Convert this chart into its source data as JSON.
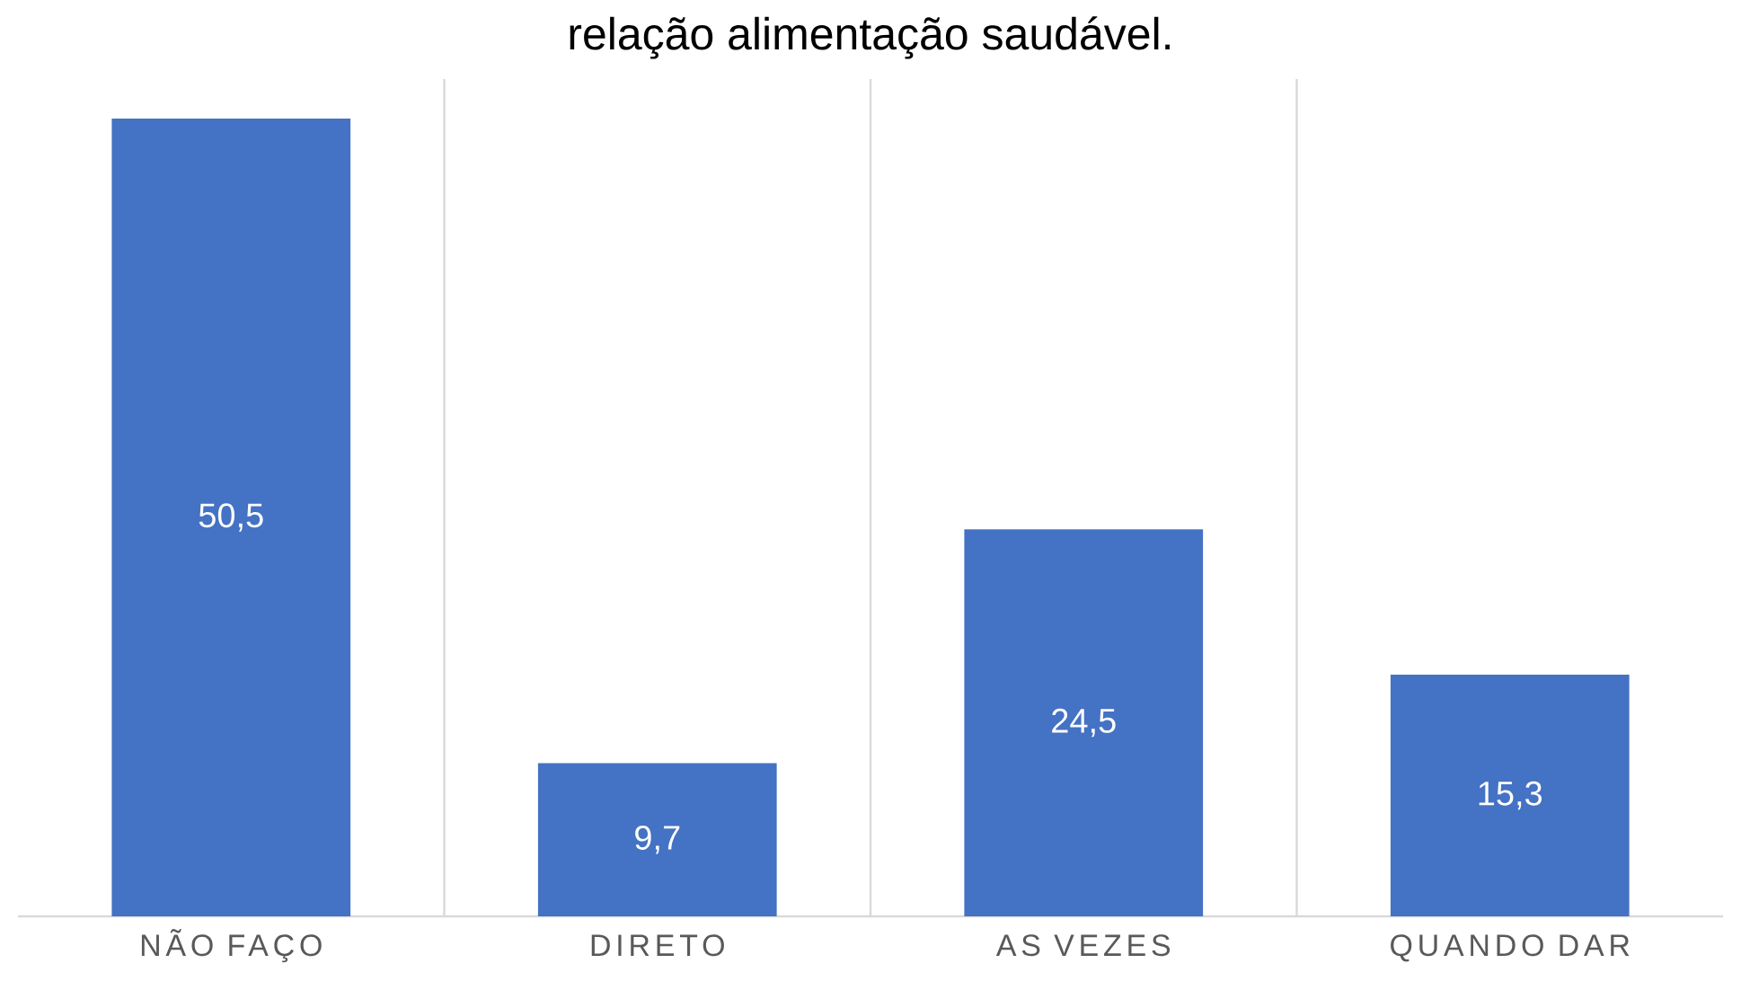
{
  "chart_data": {
    "type": "bar",
    "title": "relação alimentação saudável.",
    "categories": [
      "NÃO FAÇO",
      "DIRETO",
      "AS VEZES",
      "QUANDO DAR"
    ],
    "values": [
      50.5,
      9.7,
      24.5,
      15.3
    ],
    "value_labels": [
      "50,5",
      "9,7",
      "24,5",
      "15,3"
    ],
    "color": "#4472c4",
    "ylim": [
      0,
      53
    ],
    "grid": "x",
    "tick_labels": "x"
  }
}
